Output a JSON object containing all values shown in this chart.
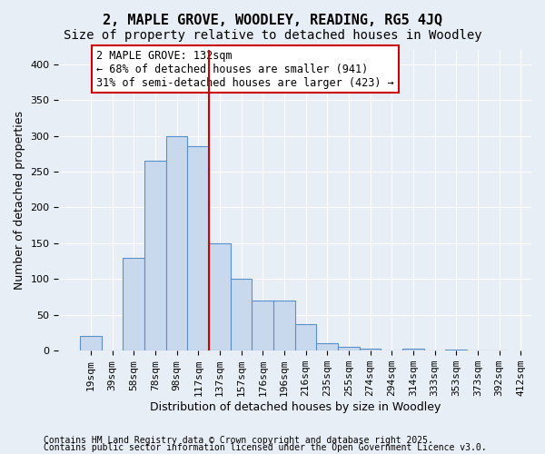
{
  "title": "2, MAPLE GROVE, WOODLEY, READING, RG5 4JQ",
  "subtitle": "Size of property relative to detached houses in Woodley",
  "xlabel": "Distribution of detached houses by size in Woodley",
  "ylabel": "Number of detached properties",
  "bin_labels": [
    "19sqm",
    "39sqm",
    "58sqm",
    "78sqm",
    "98sqm",
    "117sqm",
    "137sqm",
    "157sqm",
    "176sqm",
    "196sqm",
    "216sqm",
    "235sqm",
    "255sqm",
    "274sqm",
    "294sqm",
    "314sqm",
    "333sqm",
    "353sqm",
    "373sqm",
    "392sqm",
    "412sqm"
  ],
  "bar_heights": [
    20,
    0,
    130,
    265,
    300,
    285,
    150,
    100,
    70,
    70,
    37,
    10,
    5,
    3,
    0,
    3,
    0,
    1,
    0,
    0
  ],
  "bar_color": "#c9d9ed",
  "bar_edge_color": "#5b8fc9",
  "vline_x": 5.5,
  "vline_color": "#cc0000",
  "annotation_text": "2 MAPLE GROVE: 132sqm\n← 68% of detached houses are smaller (941)\n31% of semi-detached houses are larger (423) →",
  "annotation_box_color": "#ffffff",
  "annotation_box_edge": "#cc0000",
  "ylim": [
    0,
    420
  ],
  "yticks": [
    0,
    50,
    100,
    150,
    200,
    250,
    300,
    350,
    400
  ],
  "footer1": "Contains HM Land Registry data © Crown copyright and database right 2025.",
  "footer2": "Contains public sector information licensed under the Open Government Licence v3.0.",
  "background_color": "#e8eef5",
  "plot_bg_color": "#e8eef5",
  "title_fontsize": 11,
  "subtitle_fontsize": 10,
  "axis_label_fontsize": 9,
  "tick_fontsize": 8,
  "annotation_fontsize": 8.5,
  "footer_fontsize": 7
}
